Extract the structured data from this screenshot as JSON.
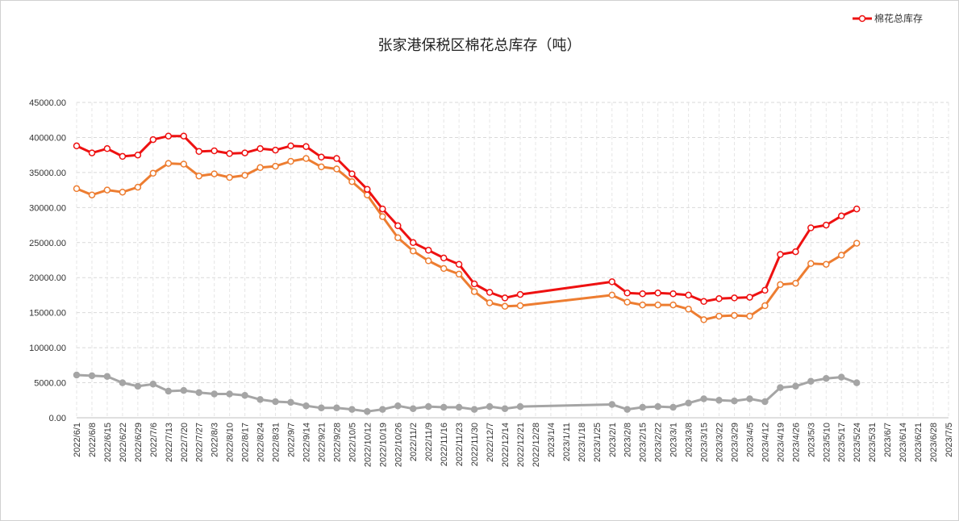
{
  "chart_data": {
    "type": "line",
    "title": "张家港保税区棉花总库存（吨）",
    "xlabel": "",
    "ylabel": "",
    "ylim": [
      0,
      45000
    ],
    "y_ticks": [
      "0.00",
      "5000.00",
      "10000.00",
      "15000.00",
      "20000.00",
      "25000.00",
      "30000.00",
      "35000.00",
      "40000.00",
      "45000.00"
    ],
    "grid": true,
    "legend_position": "top-right",
    "x_tick_labels": [
      "2022/6/1",
      "2022/6/8",
      "2022/6/15",
      "2022/6/22",
      "2022/6/29",
      "2022/7/6",
      "2022/7/13",
      "2022/7/20",
      "2022/7/27",
      "2022/8/3",
      "2022/8/10",
      "2022/8/17",
      "2022/8/24",
      "2022/8/31",
      "2022/9/7",
      "2022/9/14",
      "2022/9/21",
      "2022/9/28",
      "2022/10/5",
      "2022/10/12",
      "2022/10/19",
      "2022/10/26",
      "2022/11/2",
      "2022/11/9",
      "2022/11/16",
      "2022/11/23",
      "2022/11/30",
      "2022/12/7",
      "2022/12/14",
      "2022/12/21",
      "2022/12/28",
      "2023/1/4",
      "2023/1/11",
      "2023/1/18",
      "2023/1/25",
      "2023/2/1",
      "2023/2/8",
      "2023/2/15",
      "2023/2/22",
      "2023/3/1",
      "2023/3/8",
      "2023/3/15",
      "2023/3/22",
      "2023/3/29",
      "2023/4/5",
      "2023/4/12",
      "2023/4/19",
      "2023/4/26",
      "2023/5/3",
      "2023/5/10",
      "2023/5/17",
      "2023/5/24",
      "2023/5/31",
      "2023/6/7",
      "2023/6/14",
      "2023/6/21",
      "2023/6/28",
      "2023/7/5"
    ],
    "series": [
      {
        "name": "棉花总库存",
        "color": "#ee1111",
        "points": [
          [
            "2022/6/1",
            38800
          ],
          [
            "2022/6/8",
            37800
          ],
          [
            "2022/6/15",
            38400
          ],
          [
            "2022/6/22",
            37300
          ],
          [
            "2022/6/29",
            37500
          ],
          [
            "2022/7/6",
            39700
          ],
          [
            "2022/7/13",
            40200
          ],
          [
            "2022/7/20",
            40200
          ],
          [
            "2022/7/27",
            38000
          ],
          [
            "2022/8/3",
            38100
          ],
          [
            "2022/8/10",
            37700
          ],
          [
            "2022/8/17",
            37800
          ],
          [
            "2022/8/24",
            38400
          ],
          [
            "2022/8/31",
            38200
          ],
          [
            "2022/9/7",
            38800
          ],
          [
            "2022/9/14",
            38700
          ],
          [
            "2022/9/21",
            37200
          ],
          [
            "2022/9/28",
            37000
          ],
          [
            "2022/10/5",
            34800
          ],
          [
            "2022/10/12",
            32600
          ],
          [
            "2022/10/19",
            29800
          ],
          [
            "2022/10/26",
            27400
          ],
          [
            "2022/11/2",
            25000
          ],
          [
            "2022/11/9",
            23900
          ],
          [
            "2022/11/16",
            22800
          ],
          [
            "2022/11/23",
            21900
          ],
          [
            "2022/11/30",
            19100
          ],
          [
            "2022/12/7",
            17900
          ],
          [
            "2022/12/14",
            17100
          ],
          [
            "2022/12/21",
            17600
          ],
          [
            "2023/2/1",
            19400
          ],
          [
            "2023/2/8",
            17800
          ],
          [
            "2023/2/15",
            17700
          ],
          [
            "2023/2/22",
            17800
          ],
          [
            "2023/3/1",
            17700
          ],
          [
            "2023/3/8",
            17500
          ],
          [
            "2023/3/15",
            16600
          ],
          [
            "2023/3/22",
            17000
          ],
          [
            "2023/3/29",
            17100
          ],
          [
            "2023/4/5",
            17200
          ],
          [
            "2023/4/12",
            18200
          ],
          [
            "2023/4/19",
            23300
          ],
          [
            "2023/4/26",
            23700
          ],
          [
            "2023/5/3",
            27100
          ],
          [
            "2023/5/10",
            27500
          ],
          [
            "2023/5/17",
            28800
          ],
          [
            "2023/5/24",
            29800
          ]
        ]
      },
      {
        "name": "",
        "color": "#ed7d31",
        "points": [
          [
            "2022/6/1",
            32700
          ],
          [
            "2022/6/8",
            31800
          ],
          [
            "2022/6/15",
            32500
          ],
          [
            "2022/6/22",
            32200
          ],
          [
            "2022/6/29",
            32900
          ],
          [
            "2022/7/6",
            34900
          ],
          [
            "2022/7/13",
            36300
          ],
          [
            "2022/7/20",
            36200
          ],
          [
            "2022/7/27",
            34500
          ],
          [
            "2022/8/3",
            34800
          ],
          [
            "2022/8/10",
            34300
          ],
          [
            "2022/8/17",
            34600
          ],
          [
            "2022/8/24",
            35700
          ],
          [
            "2022/8/31",
            35900
          ],
          [
            "2022/9/7",
            36600
          ],
          [
            "2022/9/14",
            37000
          ],
          [
            "2022/9/21",
            35800
          ],
          [
            "2022/9/28",
            35500
          ],
          [
            "2022/10/5",
            33700
          ],
          [
            "2022/10/12",
            31800
          ],
          [
            "2022/10/19",
            28700
          ],
          [
            "2022/10/26",
            25700
          ],
          [
            "2022/11/2",
            23800
          ],
          [
            "2022/11/9",
            22400
          ],
          [
            "2022/11/16",
            21300
          ],
          [
            "2022/11/23",
            20500
          ],
          [
            "2022/11/30",
            18000
          ],
          [
            "2022/12/7",
            16400
          ],
          [
            "2022/12/14",
            15900
          ],
          [
            "2022/12/21",
            16000
          ],
          [
            "2023/2/1",
            17500
          ],
          [
            "2023/2/8",
            16500
          ],
          [
            "2023/2/15",
            16100
          ],
          [
            "2023/2/22",
            16100
          ],
          [
            "2023/3/1",
            16100
          ],
          [
            "2023/3/8",
            15500
          ],
          [
            "2023/3/15",
            14000
          ],
          [
            "2023/3/22",
            14500
          ],
          [
            "2023/3/29",
            14600
          ],
          [
            "2023/4/5",
            14500
          ],
          [
            "2023/4/12",
            16000
          ],
          [
            "2023/4/19",
            19000
          ],
          [
            "2023/4/26",
            19200
          ],
          [
            "2023/5/3",
            22000
          ],
          [
            "2023/5/10",
            21900
          ],
          [
            "2023/5/17",
            23200
          ],
          [
            "2023/5/24",
            24900
          ]
        ]
      },
      {
        "name": "",
        "color": "#a5a5a5",
        "points": [
          [
            "2022/6/1",
            6100
          ],
          [
            "2022/6/8",
            6000
          ],
          [
            "2022/6/15",
            5900
          ],
          [
            "2022/6/22",
            5000
          ],
          [
            "2022/6/29",
            4500
          ],
          [
            "2022/7/6",
            4800
          ],
          [
            "2022/7/13",
            3800
          ],
          [
            "2022/7/20",
            3900
          ],
          [
            "2022/7/27",
            3600
          ],
          [
            "2022/8/3",
            3400
          ],
          [
            "2022/8/10",
            3400
          ],
          [
            "2022/8/17",
            3200
          ],
          [
            "2022/8/24",
            2600
          ],
          [
            "2022/8/31",
            2300
          ],
          [
            "2022/9/7",
            2200
          ],
          [
            "2022/9/14",
            1700
          ],
          [
            "2022/9/21",
            1400
          ],
          [
            "2022/9/28",
            1400
          ],
          [
            "2022/10/5",
            1200
          ],
          [
            "2022/10/12",
            900
          ],
          [
            "2022/10/19",
            1200
          ],
          [
            "2022/10/26",
            1700
          ],
          [
            "2022/11/2",
            1300
          ],
          [
            "2022/11/9",
            1600
          ],
          [
            "2022/11/16",
            1500
          ],
          [
            "2022/11/23",
            1500
          ],
          [
            "2022/11/30",
            1200
          ],
          [
            "2022/12/7",
            1600
          ],
          [
            "2022/12/14",
            1300
          ],
          [
            "2022/12/21",
            1600
          ],
          [
            "2023/2/1",
            1900
          ],
          [
            "2023/2/8",
            1200
          ],
          [
            "2023/2/15",
            1500
          ],
          [
            "2023/2/22",
            1600
          ],
          [
            "2023/3/1",
            1500
          ],
          [
            "2023/3/8",
            2100
          ],
          [
            "2023/3/15",
            2700
          ],
          [
            "2023/3/22",
            2500
          ],
          [
            "2023/3/29",
            2400
          ],
          [
            "2023/4/5",
            2700
          ],
          [
            "2023/4/12",
            2300
          ],
          [
            "2023/4/19",
            4300
          ],
          [
            "2023/4/26",
            4500
          ],
          [
            "2023/5/3",
            5200
          ],
          [
            "2023/5/10",
            5600
          ],
          [
            "2023/5/17",
            5800
          ],
          [
            "2023/5/24",
            5000
          ]
        ]
      }
    ]
  }
}
